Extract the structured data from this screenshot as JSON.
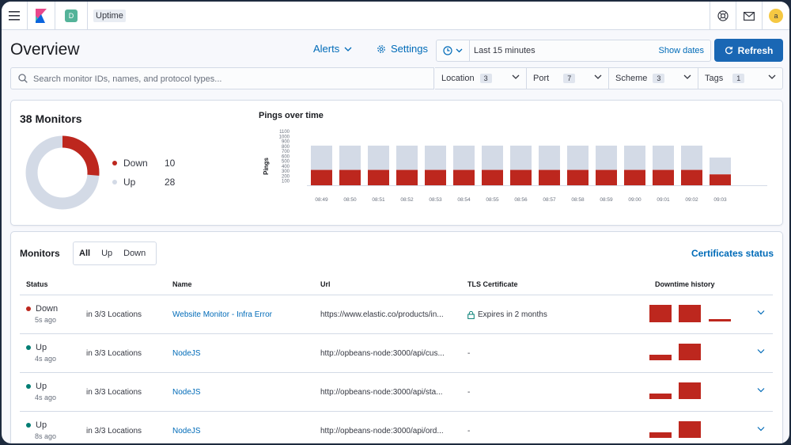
{
  "app": {
    "space_initial": "D",
    "breadcrumb": "Uptime",
    "user_initial": "a"
  },
  "header": {
    "title": "Overview",
    "alerts_label": "Alerts",
    "settings_label": "Settings",
    "time_range": "Last 15 minutes",
    "show_dates": "Show dates",
    "refresh_label": "Refresh"
  },
  "search": {
    "placeholder": "Search monitor IDs, names, and protocol types..."
  },
  "filters": [
    {
      "label": "Location",
      "count": "3"
    },
    {
      "label": "Port",
      "count": "7"
    },
    {
      "label": "Scheme",
      "count": "3"
    },
    {
      "label": "Tags",
      "count": "1"
    }
  ],
  "snapshot": {
    "title": "38 Monitors",
    "down_label": "Down",
    "down_value": "10",
    "up_label": "Up",
    "up_value": "28"
  },
  "chart_data": {
    "type": "bar",
    "title": "Pings over time",
    "ylabel": "Pings",
    "y_ticks": [
      "1100",
      "1000",
      "900",
      "800",
      "700",
      "600",
      "500",
      "400",
      "300",
      "200",
      "100"
    ],
    "ylim": [
      0,
      1150
    ],
    "categories": [
      "08:49",
      "08:50",
      "08:51",
      "08:52",
      "08:53",
      "08:54",
      "08:55",
      "08:56",
      "08:57",
      "08:58",
      "08:59",
      "09:00",
      "09:01",
      "09:02",
      "09:03"
    ],
    "series": [
      {
        "values": [
          310,
          310,
          310,
          310,
          310,
          310,
          310,
          310,
          310,
          310,
          310,
          310,
          310,
          310,
          220
        ]
      },
      {
        "values": [
          800,
          800,
          800,
          800,
          800,
          800,
          800,
          800,
          800,
          800,
          800,
          800,
          800,
          800,
          560
        ]
      }
    ],
    "colors": {
      "down": "#bd271e",
      "up": "#d3dae6"
    }
  },
  "monitors": {
    "title": "Monitors",
    "filter_all": "All",
    "filter_up": "Up",
    "filter_down": "Down",
    "certificates_link": "Certificates status",
    "columns": [
      "Status",
      "Name",
      "Url",
      "TLS Certificate",
      "Downtime history"
    ],
    "rows": [
      {
        "status": "Down",
        "ago": "5s ago",
        "locations": "in 3/3 Locations",
        "name": "Website Monitor - Infra Error",
        "url": "https://www.elastic.co/products/in...",
        "tls": "Expires in 2 months",
        "color": "#bd271e"
      },
      {
        "status": "Up",
        "ago": "4s ago",
        "locations": "in 3/3 Locations",
        "name": "NodeJS",
        "url": "http://opbeans-node:3000/api/cus...",
        "tls": "-",
        "color": "#017d73"
      },
      {
        "status": "Up",
        "ago": "4s ago",
        "locations": "in 3/3 Locations",
        "name": "NodeJS",
        "url": "http://opbeans-node:3000/api/sta...",
        "tls": "-",
        "color": "#017d73"
      },
      {
        "status": "Up",
        "ago": "8s ago",
        "locations": "in 3/3 Locations",
        "name": "NodeJS",
        "url": "http://opbeans-node:3000/api/ord...",
        "tls": "-",
        "color": "#017d73"
      }
    ]
  }
}
